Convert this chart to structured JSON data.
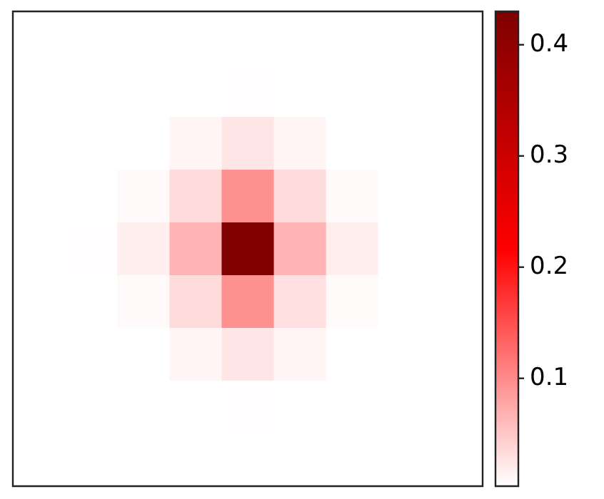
{
  "chart_data": {
    "type": "heatmap",
    "categories": [
      null,
      null,
      null,
      null,
      null,
      null,
      null,
      null,
      null
    ],
    "y_categories": [
      null,
      null,
      null,
      null,
      null,
      null,
      null,
      null,
      null
    ],
    "cells": [
      [
        0.003,
        0.003,
        0.003,
        0.003,
        0.003,
        0.003,
        0.003,
        0.003,
        0.003
      ],
      [
        0.003,
        0.003,
        0.003,
        0.003,
        0.005,
        0.003,
        0.003,
        0.003,
        0.003
      ],
      [
        0.003,
        0.003,
        0.003,
        0.011,
        0.024,
        0.011,
        0.003,
        0.003,
        0.003
      ],
      [
        0.003,
        0.003,
        0.008,
        0.032,
        0.096,
        0.032,
        0.008,
        0.003,
        0.003
      ],
      [
        0.003,
        0.005,
        0.016,
        0.067,
        0.43,
        0.067,
        0.016,
        0.003,
        0.003
      ],
      [
        0.003,
        0.003,
        0.008,
        0.032,
        0.096,
        0.03,
        0.006,
        0.003,
        0.003
      ],
      [
        0.003,
        0.003,
        0.003,
        0.011,
        0.024,
        0.011,
        0.003,
        0.003,
        0.003
      ],
      [
        0.003,
        0.003,
        0.003,
        0.003,
        0.005,
        0.003,
        0.003,
        0.003,
        0.003
      ],
      [
        0.003,
        0.003,
        0.003,
        0.003,
        0.003,
        0.003,
        0.003,
        0.003,
        0.003
      ]
    ],
    "clim": [
      0.003,
      0.43
    ],
    "cticks": [
      0.1,
      0.2,
      0.3,
      0.4
    ],
    "tick_labels": false
  }
}
